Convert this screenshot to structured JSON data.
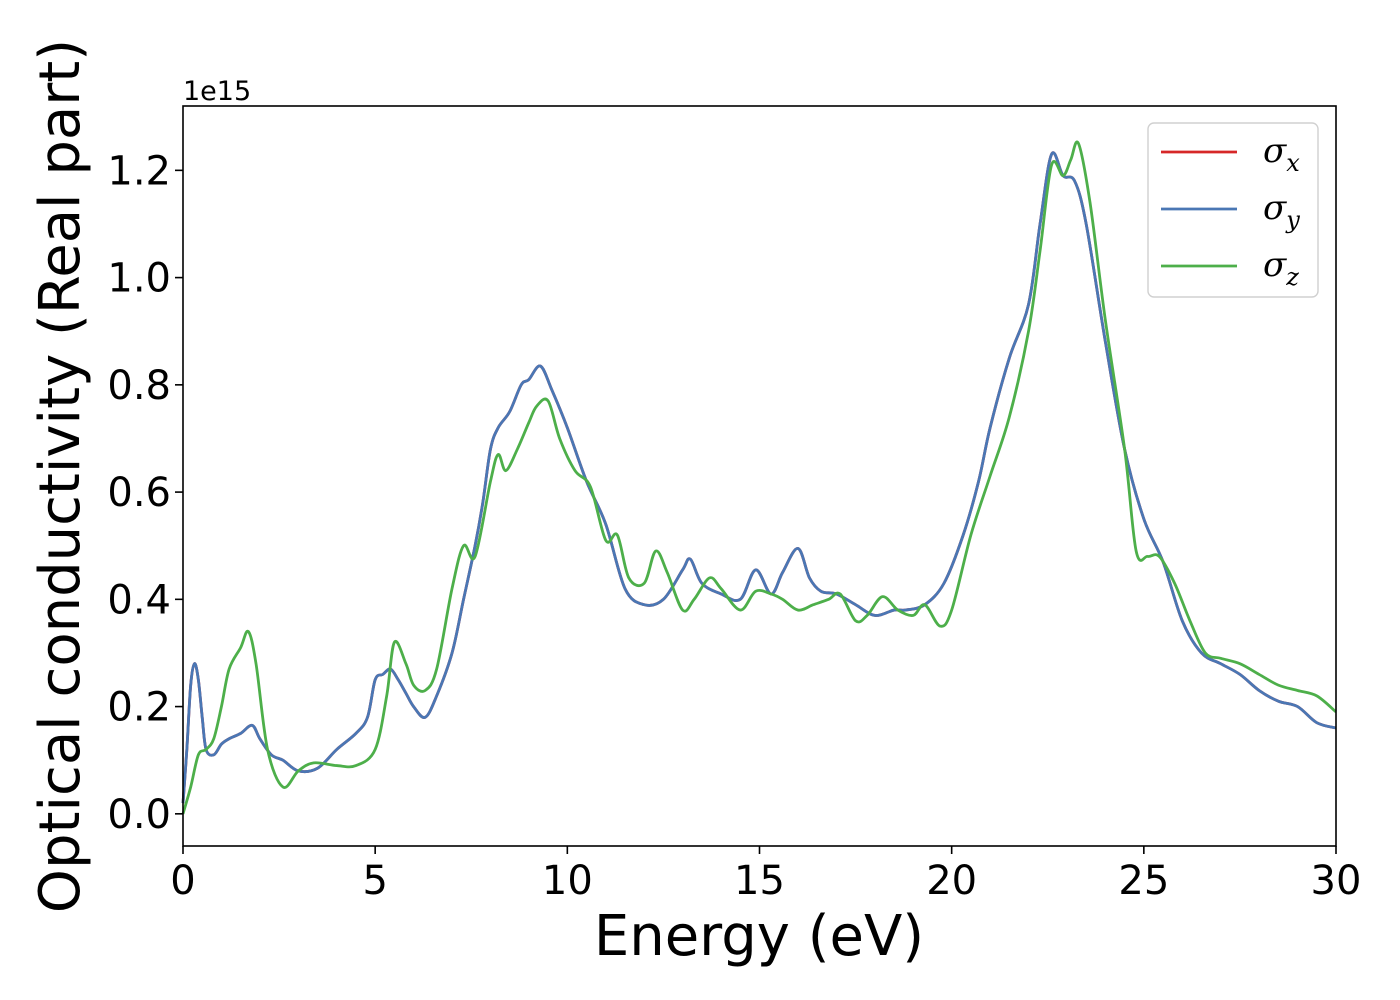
{
  "chart_data": {
    "type": "line",
    "xlabel": "Energy (eV)",
    "ylabel": "Optical conductivity (Real part)",
    "y_offset_label": "1e15",
    "xlim": [
      0,
      30
    ],
    "ylim": [
      -0.06,
      1.32
    ],
    "x_ticks": [
      0,
      5,
      10,
      15,
      20,
      25,
      30
    ],
    "x_tick_labels": [
      "0",
      "5",
      "10",
      "15",
      "20",
      "25",
      "30"
    ],
    "y_ticks": [
      0.0,
      0.2,
      0.4,
      0.6,
      0.8,
      1.0,
      1.2
    ],
    "y_tick_labels": [
      "0.0",
      "0.2",
      "0.4",
      "0.6",
      "0.8",
      "1.0",
      "1.2"
    ],
    "grid": false,
    "legend_position": "top-right",
    "series": [
      {
        "name": "σx",
        "legend_base": "σ",
        "legend_sub": "x",
        "color": "#d62728",
        "x": [
          0,
          0.1,
          0.2,
          0.3,
          0.4,
          0.5,
          0.6,
          0.8,
          1.0,
          1.2,
          1.5,
          1.8,
          2.0,
          2.3,
          2.6,
          3.0,
          3.5,
          4.0,
          4.5,
          4.8,
          5.0,
          5.2,
          5.4,
          5.6,
          5.8,
          6.0,
          6.3,
          6.6,
          7.0,
          7.3,
          7.6,
          7.8,
          8.0,
          8.2,
          8.5,
          8.8,
          9.0,
          9.3,
          9.6,
          10.0,
          10.5,
          11.0,
          11.5,
          12.0,
          12.5,
          13.0,
          13.2,
          13.5,
          14.0,
          14.5,
          14.9,
          15.3,
          15.6,
          16.0,
          16.3,
          16.6,
          17.0,
          17.5,
          18.0,
          18.5,
          18.8,
          19.3,
          19.8,
          20.3,
          20.7,
          21.0,
          21.5,
          22.0,
          22.3,
          22.6,
          22.9,
          23.2,
          23.5,
          24.0,
          24.5,
          25.0,
          25.5,
          26.0,
          26.5,
          27.0,
          27.5,
          28.0,
          28.5,
          29.0,
          29.5,
          30.0
        ],
        "values": [
          0.02,
          0.12,
          0.24,
          0.28,
          0.25,
          0.18,
          0.12,
          0.11,
          0.13,
          0.14,
          0.15,
          0.165,
          0.14,
          0.11,
          0.1,
          0.08,
          0.085,
          0.12,
          0.15,
          0.18,
          0.25,
          0.26,
          0.27,
          0.25,
          0.225,
          0.2,
          0.18,
          0.22,
          0.3,
          0.4,
          0.5,
          0.58,
          0.68,
          0.72,
          0.75,
          0.8,
          0.81,
          0.835,
          0.79,
          0.72,
          0.62,
          0.54,
          0.42,
          0.39,
          0.4,
          0.455,
          0.475,
          0.43,
          0.41,
          0.4,
          0.455,
          0.41,
          0.45,
          0.495,
          0.44,
          0.415,
          0.41,
          0.39,
          0.37,
          0.38,
          0.38,
          0.39,
          0.43,
          0.52,
          0.62,
          0.72,
          0.85,
          0.95,
          1.1,
          1.23,
          1.19,
          1.18,
          1.1,
          0.88,
          0.68,
          0.55,
          0.47,
          0.36,
          0.3,
          0.28,
          0.26,
          0.23,
          0.21,
          0.2,
          0.17,
          0.16
        ]
      },
      {
        "name": "σy",
        "legend_base": "σ",
        "legend_sub": "y",
        "color": "#4a77b4",
        "x": [
          0,
          0.1,
          0.2,
          0.3,
          0.4,
          0.5,
          0.6,
          0.8,
          1.0,
          1.2,
          1.5,
          1.8,
          2.0,
          2.3,
          2.6,
          3.0,
          3.5,
          4.0,
          4.5,
          4.8,
          5.0,
          5.2,
          5.4,
          5.6,
          5.8,
          6.0,
          6.3,
          6.6,
          7.0,
          7.3,
          7.6,
          7.8,
          8.0,
          8.2,
          8.5,
          8.8,
          9.0,
          9.3,
          9.6,
          10.0,
          10.5,
          11.0,
          11.5,
          12.0,
          12.5,
          13.0,
          13.2,
          13.5,
          14.0,
          14.5,
          14.9,
          15.3,
          15.6,
          16.0,
          16.3,
          16.6,
          17.0,
          17.5,
          18.0,
          18.5,
          18.8,
          19.3,
          19.8,
          20.3,
          20.7,
          21.0,
          21.5,
          22.0,
          22.3,
          22.6,
          22.9,
          23.2,
          23.5,
          24.0,
          24.5,
          25.0,
          25.5,
          26.0,
          26.5,
          27.0,
          27.5,
          28.0,
          28.5,
          29.0,
          29.5,
          30.0
        ],
        "values": [
          0.02,
          0.12,
          0.24,
          0.28,
          0.25,
          0.18,
          0.12,
          0.11,
          0.13,
          0.14,
          0.15,
          0.165,
          0.14,
          0.11,
          0.1,
          0.08,
          0.085,
          0.12,
          0.15,
          0.18,
          0.25,
          0.26,
          0.27,
          0.25,
          0.225,
          0.2,
          0.18,
          0.22,
          0.3,
          0.4,
          0.5,
          0.58,
          0.68,
          0.72,
          0.75,
          0.8,
          0.81,
          0.835,
          0.79,
          0.72,
          0.62,
          0.54,
          0.42,
          0.39,
          0.4,
          0.455,
          0.475,
          0.43,
          0.41,
          0.4,
          0.455,
          0.41,
          0.45,
          0.495,
          0.44,
          0.415,
          0.41,
          0.39,
          0.37,
          0.38,
          0.38,
          0.39,
          0.43,
          0.52,
          0.62,
          0.72,
          0.85,
          0.95,
          1.1,
          1.23,
          1.19,
          1.18,
          1.1,
          0.88,
          0.68,
          0.55,
          0.47,
          0.36,
          0.3,
          0.28,
          0.26,
          0.23,
          0.21,
          0.2,
          0.17,
          0.16
        ]
      },
      {
        "name": "σz",
        "legend_base": "σ",
        "legend_sub": "z",
        "color": "#4daf4a",
        "x": [
          0,
          0.2,
          0.4,
          0.6,
          0.8,
          1.0,
          1.2,
          1.5,
          1.7,
          1.9,
          2.2,
          2.6,
          3.0,
          3.4,
          4.0,
          4.5,
          5.0,
          5.3,
          5.5,
          5.8,
          6.0,
          6.3,
          6.6,
          7.0,
          7.3,
          7.6,
          8.0,
          8.2,
          8.4,
          8.7,
          9.0,
          9.2,
          9.5,
          9.8,
          10.2,
          10.6,
          11.0,
          11.3,
          11.6,
          12.0,
          12.3,
          12.6,
          13.0,
          13.3,
          13.7,
          14.0,
          14.5,
          14.9,
          15.3,
          15.6,
          16.0,
          16.4,
          16.8,
          17.1,
          17.5,
          17.8,
          18.2,
          18.6,
          19.0,
          19.3,
          19.7,
          20.0,
          20.5,
          21.0,
          21.5,
          22.0,
          22.3,
          22.6,
          22.9,
          23.1,
          23.3,
          23.6,
          24.0,
          24.5,
          24.8,
          25.1,
          25.4,
          25.8,
          26.2,
          26.6,
          27.0,
          27.5,
          28.0,
          28.5,
          29.0,
          29.5,
          30.0
        ],
        "values": [
          0.0,
          0.05,
          0.11,
          0.12,
          0.14,
          0.2,
          0.27,
          0.31,
          0.34,
          0.28,
          0.12,
          0.05,
          0.08,
          0.095,
          0.09,
          0.09,
          0.12,
          0.22,
          0.32,
          0.28,
          0.24,
          0.23,
          0.27,
          0.42,
          0.5,
          0.48,
          0.62,
          0.67,
          0.64,
          0.68,
          0.73,
          0.76,
          0.77,
          0.7,
          0.64,
          0.61,
          0.51,
          0.52,
          0.44,
          0.43,
          0.49,
          0.45,
          0.38,
          0.4,
          0.44,
          0.42,
          0.38,
          0.415,
          0.41,
          0.4,
          0.38,
          0.39,
          0.4,
          0.41,
          0.36,
          0.37,
          0.405,
          0.38,
          0.37,
          0.39,
          0.35,
          0.38,
          0.52,
          0.63,
          0.74,
          0.9,
          1.05,
          1.21,
          1.19,
          1.22,
          1.25,
          1.14,
          0.92,
          0.68,
          0.49,
          0.48,
          0.48,
          0.43,
          0.36,
          0.3,
          0.29,
          0.28,
          0.26,
          0.24,
          0.23,
          0.22,
          0.19
        ]
      }
    ]
  }
}
